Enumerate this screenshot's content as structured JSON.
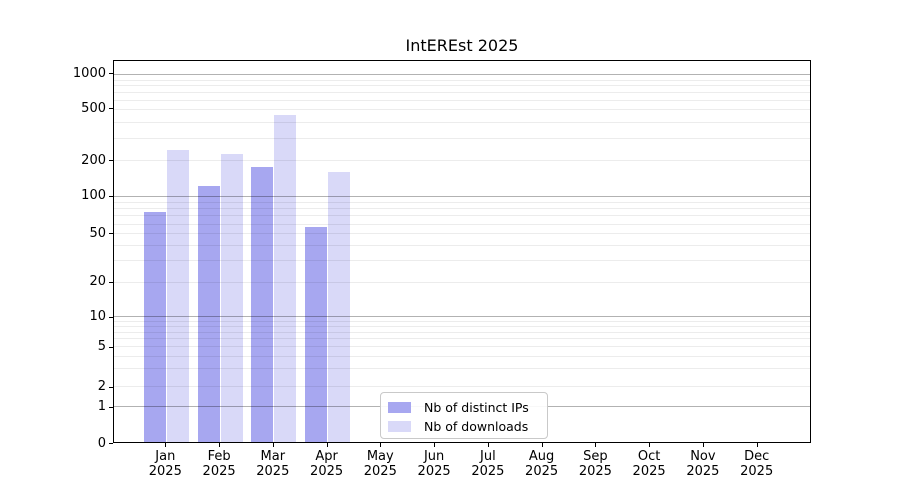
{
  "chart_data": {
    "type": "bar",
    "title": "IntEREst 2025",
    "categories": [
      "Jan",
      "Feb",
      "Mar",
      "Apr",
      "May",
      "Jun",
      "Jul",
      "Aug",
      "Sep",
      "Oct",
      "Nov",
      "Dec"
    ],
    "x_tick_line2": "2025",
    "series": [
      {
        "name": "Nb of distinct IPs",
        "color": "#a7a7f0",
        "values": [
          75,
          122,
          176,
          56,
          0,
          0,
          0,
          0,
          0,
          0,
          0,
          0
        ]
      },
      {
        "name": "Nb of downloads",
        "color": "#d9d9f8",
        "values": [
          241,
          225,
          450,
          160,
          0,
          0,
          0,
          0,
          0,
          0,
          0,
          0
        ]
      }
    ],
    "yaxis": {
      "scale": "symlog",
      "tick_values": [
        0,
        1,
        2,
        5,
        10,
        20,
        50,
        100,
        200,
        500,
        1000
      ],
      "tick_labels": [
        "0",
        "1",
        "2",
        "5",
        "10",
        "20",
        "50",
        "100",
        "200",
        "500",
        "1000"
      ],
      "ylim": [
        0,
        1300
      ]
    },
    "grid": {
      "major_on": true,
      "minor_on": true
    },
    "legend": {
      "entries": [
        "Nb of distinct IPs",
        "Nb of downloads"
      ],
      "location": "lower center"
    }
  }
}
